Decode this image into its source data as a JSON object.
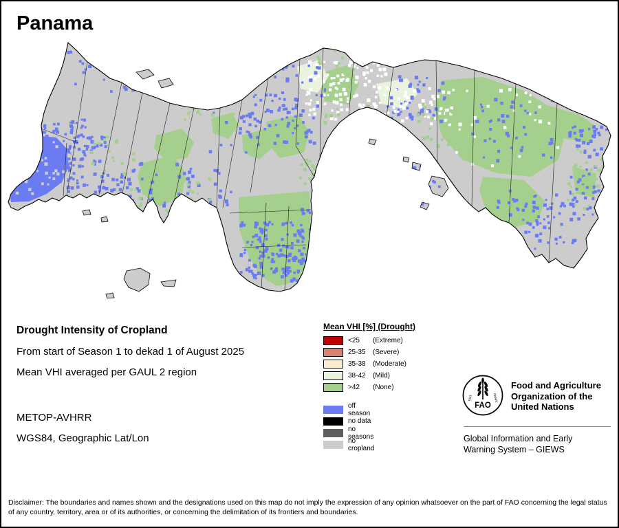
{
  "title": "Panama",
  "info": {
    "heading": "Drought Intensity of Cropland",
    "period": "From start of Season 1 to dekad 1 of August 2025",
    "aggregation": "Mean VHI averaged per GAUL 2 region",
    "sensor": "METOP-AVHRR",
    "projection": "WGS84, Geographic Lat/Lon"
  },
  "legend": {
    "title": "Mean VHI [%] (Drought)",
    "classes": [
      {
        "label": "<25",
        "suffix": "(Extreme)",
        "color": "#c00000"
      },
      {
        "label": "25-35",
        "suffix": "(Severe)",
        "color": "#d98470"
      },
      {
        "label": "35-38",
        "suffix": "(Moderate)",
        "color": "#fdecd2"
      },
      {
        "label": "38-42",
        "suffix": "(Mild)",
        "color": "#eaf3de"
      },
      {
        "label": ">42",
        "suffix": "(None)",
        "color": "#a5cf8c"
      }
    ],
    "extra": [
      {
        "label": "off season",
        "color": "#6b7cf2"
      },
      {
        "label": "no data",
        "color": "#000000"
      },
      {
        "label": "no seasons",
        "color": "#5f5f5f"
      },
      {
        "label": "no cropland",
        "color": "#cccccc"
      }
    ]
  },
  "org": {
    "acronym": "FAO",
    "motto_left": "FIAT",
    "motto_right": "PANIS",
    "name": "Food and Agriculture Organization of the United Nations",
    "subtitle": "Global Information and Early Warning System – GIEWS"
  },
  "disclaimer": "Disclaimer: The boundaries and names shown and the designations used on this map do not imply the expression of any opinion whatsoever on the part of FAO concerning the legal status of any country, territory, area or of its authorities, or concerning the delimitation of its frontiers and boundaries."
}
